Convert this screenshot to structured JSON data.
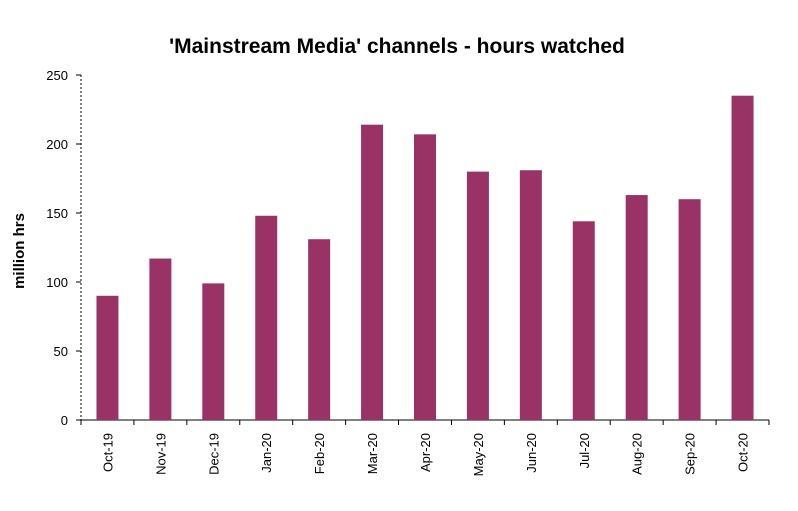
{
  "chart_data": {
    "type": "bar",
    "title": "'Mainstream Media' channels - hours watched",
    "ylabel": "million hrs",
    "xlabel": "",
    "categories": [
      "Oct-19",
      "Nov-19",
      "Dec-19",
      "Jan-20",
      "Feb-20",
      "Mar-20",
      "Apr-20",
      "May-20",
      "Jun-20",
      "Jul-20",
      "Aug-20",
      "Sep-20",
      "Oct-20"
    ],
    "values": [
      90,
      117,
      99,
      148,
      131,
      214,
      207,
      180,
      181,
      144,
      163,
      160,
      235
    ],
    "ylim": [
      0,
      250
    ],
    "yticks": [
      0,
      50,
      100,
      150,
      200,
      250
    ],
    "grid": false,
    "legend": "none",
    "bar_color": "#993366"
  }
}
